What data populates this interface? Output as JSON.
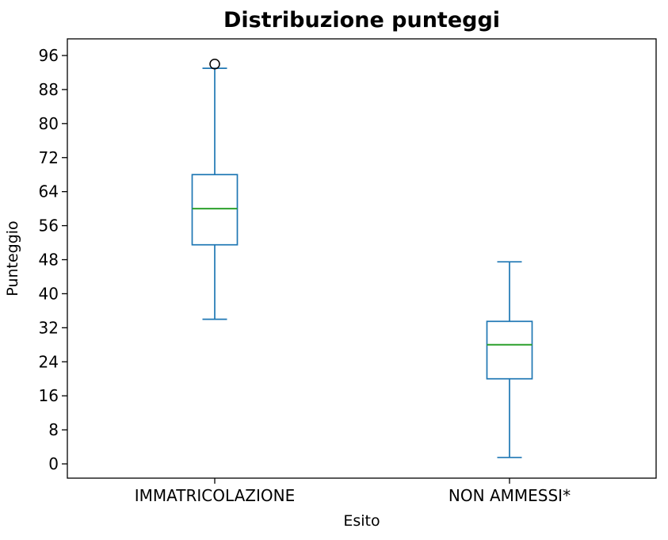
{
  "figure": {
    "title": "Distribuzione punteggi",
    "xlabel": "Esito",
    "ylabel": "Punteggio"
  },
  "chart_data": {
    "type": "boxplot",
    "title": "Distribuzione punteggi",
    "xlabel": "Esito",
    "ylabel": "Punteggio",
    "categories": [
      "IMMATRICOLAZIONE",
      "NON AMMESSI*"
    ],
    "yticks": [
      0,
      8,
      16,
      24,
      32,
      40,
      48,
      56,
      64,
      72,
      80,
      88,
      96
    ],
    "ylim": [
      -3.4,
      100
    ],
    "grid": false,
    "legend": "none",
    "series": [
      {
        "name": "IMMATRICOLAZIONE",
        "whislo": 34,
        "q1": 51.5,
        "med": 60,
        "q3": 68,
        "whishi": 93,
        "fliers": [
          94
        ]
      },
      {
        "name": "NON AMMESSI*",
        "whislo": 1.5,
        "q1": 20,
        "med": 28,
        "q3": 33.5,
        "whishi": 47.5,
        "fliers": []
      }
    ],
    "colors": {
      "box": "#1f77b4",
      "median": "#2ca02c",
      "flier": "#000000",
      "axis": "#000000",
      "background": "#ffffff"
    }
  }
}
